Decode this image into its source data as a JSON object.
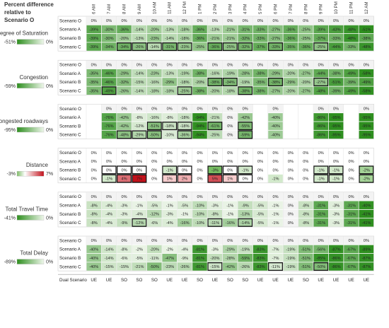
{
  "header": {
    "title": "Percent difference relative to Scenario O"
  },
  "columns": [
    "6 AM",
    "7 AM",
    "8 AM",
    "9 AM",
    "10 AM",
    "11 AM",
    "12 PM",
    "1 PM",
    "2 PM",
    "3 PM",
    "4 PM",
    "5 PM",
    "6 PM",
    "7 PM",
    "8 PM",
    "9 PM",
    "10 PM",
    "11 PM",
    "12 AM"
  ],
  "scenarios": [
    "Scenario O",
    "Scenario A",
    "Scenario B",
    "Scenario C"
  ],
  "footer": {
    "label": "Dual Scenario",
    "values": [
      "UE",
      "UE",
      "SO",
      "SO",
      "SO",
      "UE",
      "UE",
      "SO",
      "UE",
      "SO",
      "SO",
      "UE",
      "UE",
      "UE",
      "SO",
      "UE",
      "UE",
      "UE",
      "UE"
    ]
  },
  "colors": {
    "green_dark": "#2e8f1f",
    "green_light": "#eef6ea",
    "red": "#c2111b",
    "neutral": "#ffffff"
  },
  "chart_data": {
    "type": "heatmap",
    "panels": [
      {
        "title": "Degree of Saturation",
        "legend": {
          "min_label": "-51%",
          "max_label": "0%",
          "min": -51,
          "max": 0
        },
        "rows": [
          [
            0,
            0,
            0,
            0,
            0,
            0,
            0,
            0,
            0,
            0,
            0,
            0,
            0,
            0,
            0,
            0,
            0,
            0,
            0
          ],
          [
            -39,
            -30,
            -36,
            -14,
            -20,
            -13,
            -18,
            -36,
            -13,
            -21,
            -31,
            -33,
            -27,
            -36,
            -25,
            -39,
            -43,
            -48,
            -51
          ],
          [
            -39,
            -30,
            -20,
            -13,
            -23,
            -14,
            -18,
            -36,
            -21,
            -21,
            -32,
            -33,
            -27,
            -36,
            -25,
            -37,
            -33,
            -48,
            -38
          ],
          [
            -39,
            -34,
            -34,
            -26,
            -14,
            -31,
            -23,
            -25,
            -36,
            -25,
            -32,
            -37,
            -33,
            -35,
            -36,
            -25,
            -44,
            -33,
            -48
          ]
        ],
        "boxes": [
          [
            3,
            2
          ],
          [
            3,
            3
          ],
          [
            3,
            4
          ],
          [
            3,
            5
          ],
          [
            3,
            6
          ],
          [
            3,
            8
          ],
          [
            3,
            9
          ],
          [
            3,
            10
          ],
          [
            3,
            12
          ],
          [
            3,
            15
          ]
        ]
      },
      {
        "title": "Congestion",
        "legend": {
          "min_label": "-59%",
          "max_label": "0%",
          "min": -59,
          "max": 0
        },
        "rows": [
          [
            0,
            0,
            0,
            0,
            0,
            0,
            0,
            0,
            0,
            0,
            0,
            0,
            0,
            0,
            0,
            0,
            0,
            0,
            0
          ],
          [
            -35,
            -46,
            -29,
            -14,
            -23,
            -13,
            -19,
            -38,
            -16,
            -19,
            -28,
            -38,
            -29,
            -20,
            -27,
            -44,
            -38,
            -49,
            -58
          ],
          [
            -35,
            -46,
            -32,
            -15,
            -16,
            -29,
            -18,
            -20,
            -38,
            -34,
            -19,
            -35,
            -38,
            -29,
            -20,
            -27,
            -51,
            -39,
            -49
          ],
          [
            -35,
            -49,
            -26,
            -14,
            -18,
            -18,
            -25,
            -38,
            -20,
            -18,
            -38,
            -38,
            -27,
            -20,
            -27,
            -48,
            -39,
            -49,
            -58
          ]
        ],
        "boxes": [
          [
            2,
            8
          ],
          [
            2,
            9
          ],
          [
            2,
            12
          ],
          [
            2,
            15
          ],
          [
            3,
            1
          ],
          [
            3,
            6
          ],
          [
            3,
            10
          ]
        ]
      },
      {
        "title": "Congested roadways",
        "legend": {
          "min_label": "-95%",
          "max_label": "0%",
          "min": -95,
          "max": 0
        },
        "rows": [
          [
            null,
            0,
            0,
            0,
            0,
            0,
            0,
            0,
            0,
            0,
            0,
            null,
            0,
            null,
            null,
            0,
            0,
            null,
            0
          ],
          [
            null,
            -76,
            -42,
            -8,
            -16,
            -8,
            -18,
            -94,
            -21,
            0,
            -42,
            null,
            -40,
            null,
            null,
            -86,
            -95,
            null,
            -95
          ],
          [
            null,
            -76,
            -42,
            -12,
            -51,
            -18,
            -18,
            -94,
            -61,
            0,
            -55,
            null,
            -40,
            null,
            null,
            -86,
            -95,
            null,
            -95
          ],
          [
            null,
            -76,
            -48,
            -29,
            -50,
            -10,
            -36,
            -94,
            -25,
            0,
            -59,
            null,
            -40,
            null,
            null,
            -86,
            -95,
            null,
            -95
          ]
        ],
        "boxes": [
          [
            2,
            4
          ],
          [
            2,
            5
          ],
          [
            2,
            6
          ],
          [
            2,
            8
          ],
          [
            2,
            10
          ],
          [
            3,
            2
          ],
          [
            3,
            3
          ],
          [
            3,
            4
          ],
          [
            3,
            6
          ],
          [
            3,
            10
          ]
        ]
      },
      {
        "title": "Distance",
        "legend": {
          "min_label": "-3%",
          "max_label": "7%",
          "min": -3,
          "max": 7
        },
        "rows": [
          [
            0,
            0,
            0,
            0,
            0,
            0,
            0,
            0,
            0,
            0,
            0,
            0,
            0,
            0,
            0,
            0,
            0,
            0,
            0
          ],
          [
            0,
            0,
            0,
            0,
            0,
            0,
            0,
            0,
            0,
            0,
            0,
            0,
            0,
            0,
            0,
            0,
            0,
            0,
            0
          ],
          [
            0,
            0,
            0,
            0,
            0,
            -1,
            0,
            0,
            -3,
            0,
            -1,
            0,
            0,
            0,
            0,
            -1,
            -1,
            0,
            -2
          ],
          [
            0,
            -1,
            4,
            7,
            0,
            1,
            2,
            0,
            5,
            1,
            0,
            0,
            -1,
            0,
            0,
            -1,
            -1,
            0,
            -2
          ]
        ],
        "boxes": [
          [
            2,
            1
          ],
          [
            2,
            2
          ],
          [
            2,
            3
          ],
          [
            2,
            5
          ],
          [
            2,
            6
          ],
          [
            2,
            8
          ],
          [
            2,
            9
          ],
          [
            2,
            10
          ],
          [
            3,
            1
          ],
          [
            3,
            2
          ],
          [
            3,
            3
          ],
          [
            3,
            5
          ],
          [
            3,
            6
          ],
          [
            3,
            8
          ],
          [
            3,
            9
          ],
          [
            3,
            10
          ],
          [
            2,
            15
          ],
          [
            2,
            16
          ],
          [
            2,
            18
          ],
          [
            3,
            15
          ],
          [
            3,
            16
          ],
          [
            3,
            18
          ]
        ]
      },
      {
        "title": "Total Travel Time",
        "legend": {
          "min_label": "-41%",
          "max_label": "0%",
          "min": -41,
          "max": 0
        },
        "rows": [
          [
            0,
            0,
            0,
            0,
            0,
            0,
            0,
            0,
            0,
            0,
            0,
            0,
            0,
            0,
            0,
            0,
            0,
            0,
            0
          ],
          [
            -8,
            -4,
            -3,
            -1,
            -5,
            -1,
            -5,
            -10,
            -3,
            -1,
            -9,
            -5,
            -1,
            0,
            -8,
            -31,
            -3,
            -31,
            -40
          ],
          [
            -8,
            -4,
            -3,
            -4,
            -12,
            -3,
            -1,
            -10,
            -8,
            -1,
            -13,
            -5,
            -1,
            0,
            -8,
            -31,
            -3,
            -31,
            -41
          ],
          [
            -8,
            -4,
            -9,
            -12,
            -6,
            -4,
            -16,
            -10,
            -11,
            -16,
            -14,
            -5,
            -1,
            0,
            -8,
            -31,
            -3,
            -31,
            -41
          ]
        ],
        "boxes": [
          [
            3,
            3
          ],
          [
            3,
            8
          ],
          [
            3,
            10
          ]
        ]
      },
      {
        "title": "Total Delay",
        "legend": {
          "min_label": "-89%",
          "max_label": "0%",
          "min": -89,
          "max": 0
        },
        "rows": [
          [
            0,
            0,
            0,
            0,
            0,
            0,
            0,
            0,
            0,
            0,
            0,
            0,
            0,
            0,
            0,
            0,
            0,
            0,
            0
          ],
          [
            -40,
            -14,
            -8,
            -2,
            -20,
            -2,
            -4,
            -81,
            -3,
            -29,
            -19,
            -83,
            -7,
            -19,
            -51,
            -56,
            -87,
            -67,
            -89
          ],
          [
            -40,
            -14,
            -6,
            -5,
            -11,
            -47,
            -9,
            -81,
            -20,
            -28,
            -59,
            -83,
            -7,
            -19,
            -51,
            -85,
            -86,
            -67,
            -87
          ],
          [
            -40,
            -15,
            -15,
            -21,
            -50,
            -23,
            -26,
            -81,
            -15,
            -42,
            -26,
            -83,
            -11,
            -19,
            -51,
            -50,
            -86,
            -67,
            -87
          ]
        ],
        "boxes": [
          [
            3,
            8
          ],
          [
            3,
            12
          ],
          [
            3,
            15
          ]
        ]
      }
    ]
  }
}
